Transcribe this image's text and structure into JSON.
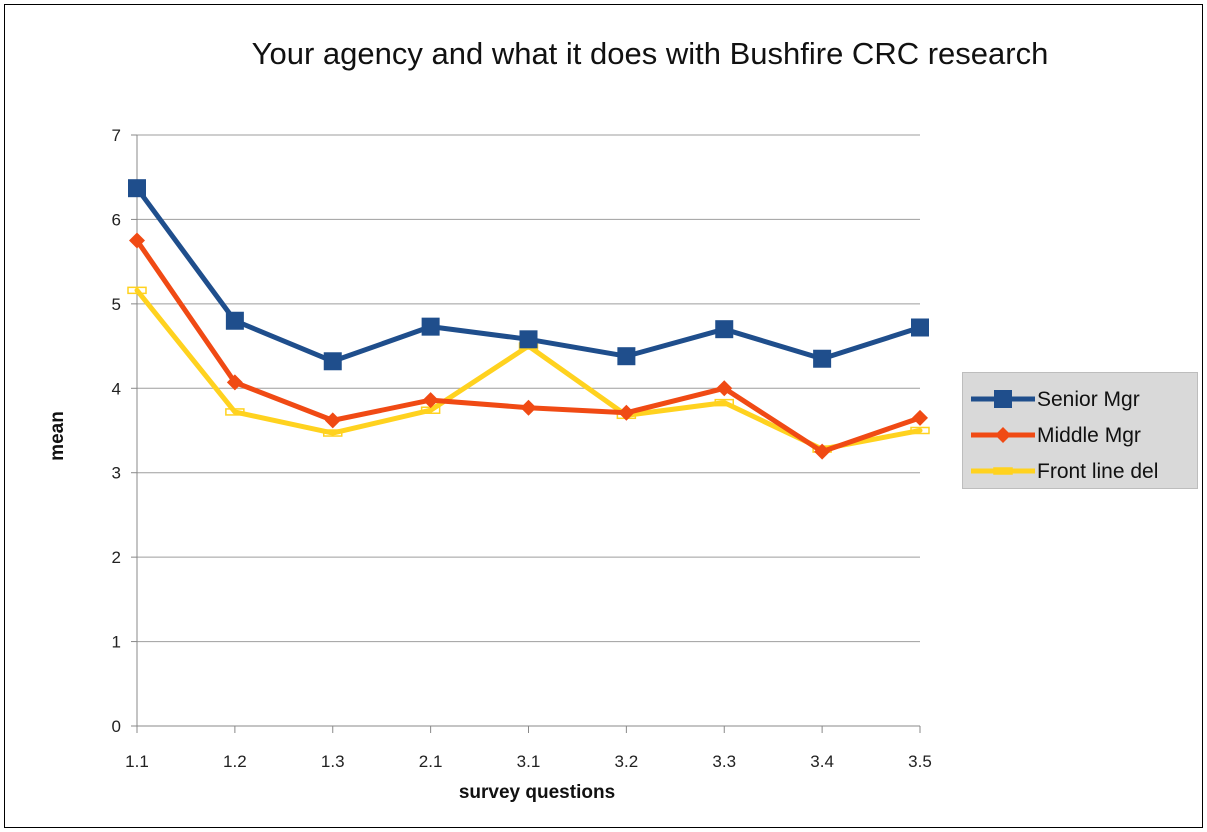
{
  "chart_data": {
    "type": "line",
    "title": "Your agency and what it does with Bushfire CRC research",
    "xlabel": "survey questions",
    "ylabel": "mean",
    "categories": [
      "1.1",
      "1.2",
      "1.3",
      "2.1",
      "3.1",
      "3.2",
      "3.3",
      "3.4",
      "3.5"
    ],
    "ylim": [
      0,
      7
    ],
    "yticks": [
      "0",
      "1",
      "2",
      "3",
      "4",
      "5",
      "6",
      "7"
    ],
    "grid": "horizontal",
    "legend_position": "right",
    "series": [
      {
        "name": "Senior Mgr",
        "color": "#1f4e8c",
        "marker": "square",
        "values": [
          6.37,
          4.8,
          4.32,
          4.73,
          4.58,
          4.38,
          4.7,
          4.35,
          4.72
        ]
      },
      {
        "name": "Middle Mgr",
        "color": "#f04a14",
        "marker": "diamond",
        "values": [
          5.75,
          4.07,
          3.62,
          3.86,
          3.77,
          3.71,
          4.0,
          3.25,
          3.65
        ]
      },
      {
        "name": "Front line del",
        "color": "#ffd21f",
        "marker": "dash",
        "values": [
          5.16,
          3.72,
          3.47,
          3.74,
          4.5,
          3.68,
          3.83,
          3.28,
          3.5
        ]
      }
    ]
  }
}
